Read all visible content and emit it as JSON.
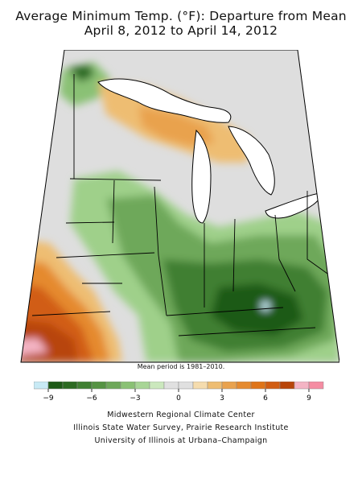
{
  "title_line1": "Average Minimum Temp. (°F): Departure from Mean",
  "title_line2": "April 8, 2012 to April 14, 2012",
  "mean_period_note": "Mean period is 1981–2010.",
  "legend": {
    "tick_labels": [
      "−9",
      "−6",
      "−3",
      "0",
      "3",
      "6",
      "9"
    ],
    "colors": [
      "#c8eaf5",
      "#1e5a17",
      "#2c6a22",
      "#3f7f32",
      "#559343",
      "#6ea85a",
      "#8ac174",
      "#a8d596",
      "#cbe8bd",
      "#e0e0e0",
      "#e0e0e0",
      "#f5dcae",
      "#eebd72",
      "#e9a24e",
      "#e58a2f",
      "#df7418",
      "#d15d12",
      "#b84509",
      "#f4b4c4",
      "#f58ca2"
    ]
  },
  "credits": {
    "line1": "Midwestern Regional Climate Center",
    "line2": "Illinois State Water Survey, Prairie Research Institute",
    "line3": "University of Illinois at Urbana–Champaign"
  }
}
